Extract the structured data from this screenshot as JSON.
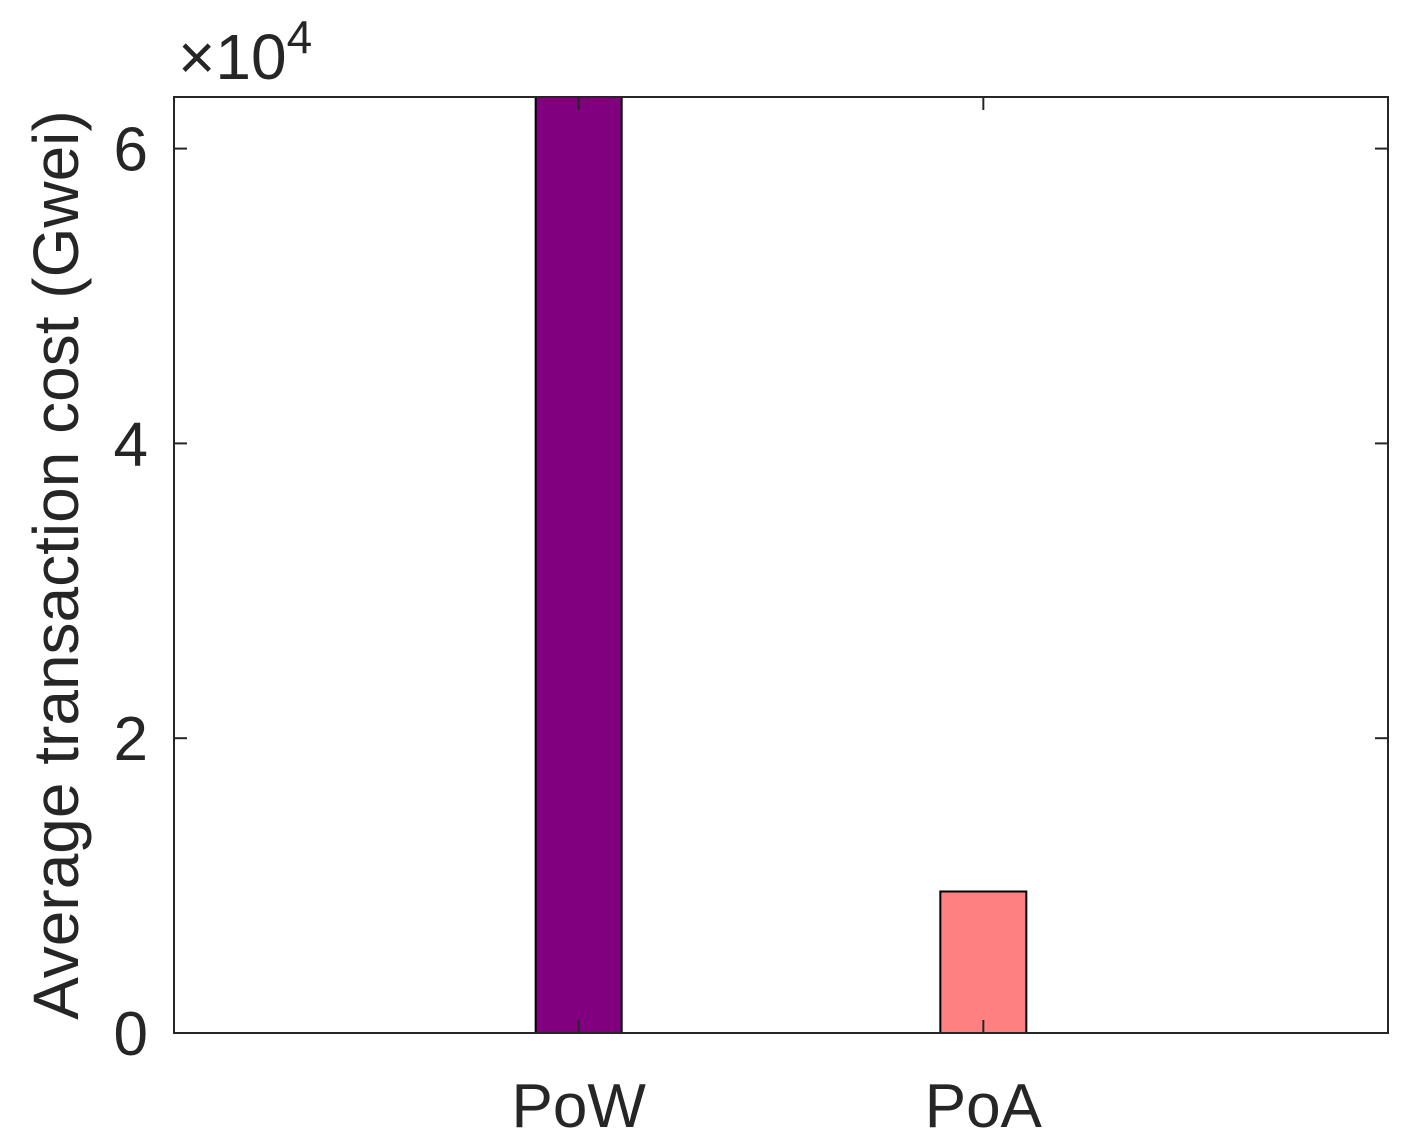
{
  "chart_data": {
    "type": "bar",
    "categories": [
      "PoW",
      "PoA"
    ],
    "values": [
      63500,
      9600
    ],
    "bar_colors": [
      "#800080",
      "#FF8080"
    ],
    "ylabel": "Average transaction cost (Gwei)",
    "xlabel": "",
    "title": "",
    "ylim": [
      0,
      63500
    ],
    "yticks": [
      0,
      2,
      4,
      6
    ],
    "y_multiplier_base": "×10",
    "y_multiplier_exp": "4",
    "grid": false,
    "box": true
  }
}
